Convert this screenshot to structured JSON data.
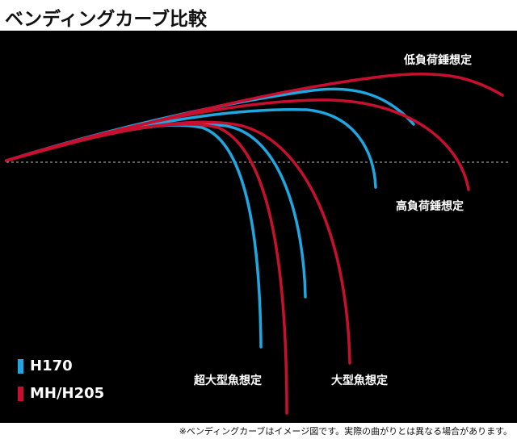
{
  "title": "ベンディングカーブ比較",
  "labels": {
    "low_load": "低負荷錘想定",
    "high_load": "高負荷錘想定",
    "extra_large_fish": "超大型魚想定",
    "large_fish": "大型魚想定"
  },
  "legend": [
    {
      "name": "H170",
      "color": "#1ea7e1"
    },
    {
      "name": "MH/H205",
      "color": "#c8102e"
    }
  ],
  "colors": {
    "blue": "#1ea7e1",
    "red": "#c8102e",
    "background": "#000000"
  },
  "note": "※ベンディングカーブはイメージ図です。実際の曲がりとは異なる場合があります。"
}
